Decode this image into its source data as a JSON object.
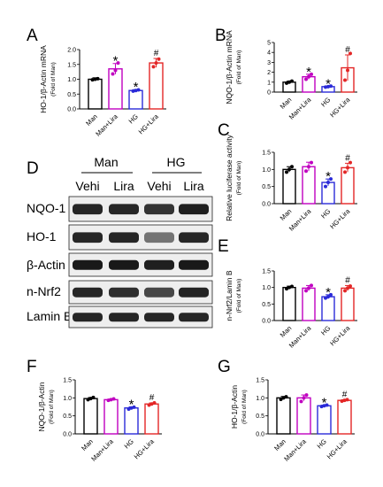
{
  "chart_data": [
    {
      "panel": "A",
      "type": "bar",
      "ylabel": "HO-1/β-Actin mRNA",
      "ylabel2": "(Fold of Man)",
      "ylim": [
        0,
        2.0
      ],
      "yticks": [
        0.0,
        0.5,
        1.0,
        1.5,
        2.0
      ],
      "categories": [
        "Man",
        "Man+Lira",
        "HG",
        "HG+Lira"
      ],
      "values": [
        1.0,
        1.35,
        0.62,
        1.55
      ],
      "errors": [
        0.05,
        0.18,
        0.03,
        0.15
      ],
      "points": [
        [
          0.98,
          1.0,
          1.02
        ],
        [
          1.18,
          1.3,
          1.55
        ],
        [
          0.6,
          0.62,
          0.64
        ],
        [
          1.42,
          1.55,
          1.68
        ]
      ],
      "marks": [
        "",
        "*",
        "*",
        "#"
      ],
      "colors": [
        "#000000",
        "#c000c0",
        "#2a2ad8",
        "#e32626"
      ]
    },
    {
      "panel": "B",
      "type": "bar",
      "ylabel": "NQO-1/β-Actin mRNA",
      "ylabel2": "(Fold of Man)",
      "ylim": [
        0,
        5
      ],
      "yticks": [
        0,
        1,
        2,
        3,
        4,
        5
      ],
      "categories": [
        "Man",
        "Man+Lira",
        "HG",
        "HG+Lira"
      ],
      "values": [
        1.0,
        1.55,
        0.55,
        2.45
      ],
      "errors": [
        0.1,
        0.25,
        0.05,
        1.3
      ],
      "points": [
        [
          0.9,
          1.0,
          1.1
        ],
        [
          1.3,
          1.55,
          1.8
        ],
        [
          0.5,
          0.55,
          0.6
        ],
        [
          1.2,
          2.2,
          3.9
        ]
      ],
      "marks": [
        "",
        "*",
        "*",
        "#"
      ],
      "colors": [
        "#000000",
        "#c000c0",
        "#2a2ad8",
        "#e32626"
      ]
    },
    {
      "panel": "C",
      "type": "bar",
      "ylabel": "Relative luciferase activity",
      "ylabel2": "(Fold of Man)",
      "ylim": [
        0,
        1.5
      ],
      "yticks": [
        0.0,
        0.5,
        1.0,
        1.5
      ],
      "categories": [
        "Man",
        "Man+Lira",
        "HG",
        "HG+Lira"
      ],
      "values": [
        1.0,
        1.08,
        0.62,
        1.05
      ],
      "errors": [
        0.08,
        0.13,
        0.1,
        0.13
      ],
      "points": [
        [
          0.92,
          1.0,
          1.08
        ],
        [
          0.95,
          1.08,
          1.2
        ],
        [
          0.5,
          0.62,
          0.72
        ],
        [
          0.92,
          1.05,
          1.2
        ]
      ],
      "marks": [
        "",
        "",
        "*",
        "#"
      ],
      "colors": [
        "#000000",
        "#c000c0",
        "#2a2ad8",
        "#e32626"
      ]
    },
    {
      "panel": "E",
      "type": "bar",
      "ylabel": "n-Nrf2/Lamin B",
      "ylabel2": "(Fold of Man)",
      "ylim": [
        0,
        1.5
      ],
      "yticks": [
        0.0,
        0.5,
        1.0,
        1.5
      ],
      "categories": [
        "Man",
        "Man+Lira",
        "HG",
        "HG+Lira"
      ],
      "values": [
        1.0,
        0.98,
        0.72,
        0.98
      ],
      "errors": [
        0.04,
        0.08,
        0.06,
        0.08
      ],
      "points": [
        [
          0.96,
          1.0,
          1.03
        ],
        [
          0.9,
          0.98,
          1.06
        ],
        [
          0.68,
          0.72,
          0.78
        ],
        [
          0.9,
          0.98,
          1.04
        ]
      ],
      "marks": [
        "",
        "",
        "*",
        "#"
      ],
      "colors": [
        "#000000",
        "#c000c0",
        "#2a2ad8",
        "#e32626"
      ]
    },
    {
      "panel": "F",
      "type": "bar",
      "ylabel": "NQO-1/β-Actin",
      "ylabel2": "(Fold of Man)",
      "ylim": [
        0,
        1.5
      ],
      "yticks": [
        0.0,
        0.5,
        1.0,
        1.5
      ],
      "categories": [
        "Man",
        "Man+Lira",
        "HG",
        "HG+Lira"
      ],
      "values": [
        0.98,
        0.95,
        0.72,
        0.83
      ],
      "errors": [
        0.03,
        0.02,
        0.03,
        0.03
      ],
      "points": [
        [
          0.95,
          0.98,
          1.01
        ],
        [
          0.93,
          0.95,
          0.97
        ],
        [
          0.69,
          0.72,
          0.74
        ],
        [
          0.8,
          0.83,
          0.86
        ]
      ],
      "marks": [
        "",
        "",
        "*",
        "#"
      ],
      "colors": [
        "#000000",
        "#c000c0",
        "#2a2ad8",
        "#e32626"
      ]
    },
    {
      "panel": "G",
      "type": "bar",
      "ylabel": "HO-1/β-Actin",
      "ylabel2": "(Fold of Man)",
      "ylim": [
        0,
        1.5
      ],
      "yticks": [
        0.0,
        0.5,
        1.0,
        1.5
      ],
      "categories": [
        "Man",
        "Man+Lira",
        "HG",
        "HG+Lira"
      ],
      "values": [
        1.0,
        1.0,
        0.78,
        0.93
      ],
      "errors": [
        0.04,
        0.08,
        0.02,
        0.02
      ],
      "points": [
        [
          0.96,
          1.0,
          1.03
        ],
        [
          0.9,
          1.0,
          1.08
        ],
        [
          0.76,
          0.78,
          0.8
        ],
        [
          0.91,
          0.93,
          0.95
        ]
      ],
      "marks": [
        "",
        "",
        "*",
        "#"
      ],
      "colors": [
        "#000000",
        "#c000c0",
        "#2a2ad8",
        "#e32626"
      ]
    }
  ],
  "panel_letters": {
    "a": "A",
    "b": "B",
    "c": "C",
    "d": "D",
    "e": "E",
    "f": "F",
    "g": "G"
  },
  "blot": {
    "groups": [
      "Man",
      "HG"
    ],
    "lanes": [
      "Vehi",
      "Lira",
      "Vehi",
      "Lira"
    ],
    "rows": [
      "NQO-1",
      "HO-1",
      "β-Actin",
      "n-Nrf2",
      "Lamin B"
    ],
    "intensity": [
      [
        0.85,
        0.85,
        0.8,
        0.88
      ],
      [
        0.85,
        0.85,
        0.55,
        0.85
      ],
      [
        0.9,
        0.9,
        0.88,
        0.9
      ],
      [
        0.85,
        0.82,
        0.72,
        0.86
      ],
      [
        0.85,
        0.85,
        0.85,
        0.85
      ]
    ]
  }
}
